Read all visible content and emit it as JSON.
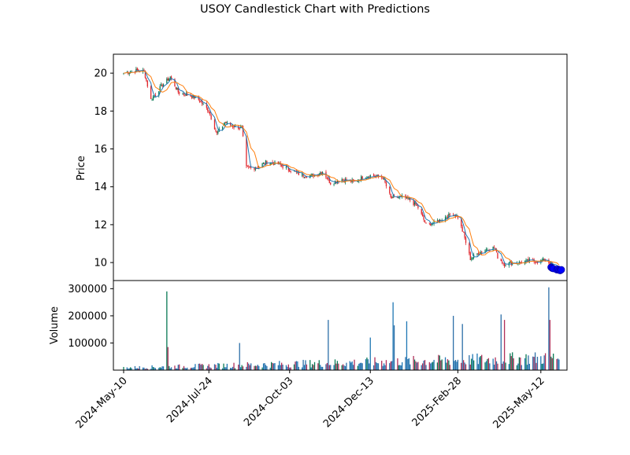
{
  "chart_data": {
    "type": "candlestick",
    "title": "USOY Candlestick Chart with Predictions",
    "price_panel": {
      "ylabel": "Price",
      "yticks": [
        10,
        12,
        14,
        16,
        18,
        20
      ],
      "ylim": [
        9.05,
        21.0
      ],
      "ma_colors": {
        "fast": "#1f77b4",
        "slow": "#ff7f0e"
      },
      "up_color": "#0a7a55",
      "down_color": "#e0262c",
      "approx_close_path": [
        [
          "2024-05-10",
          20.0
        ],
        [
          "2024-05-20",
          20.15
        ],
        [
          "2024-05-28",
          20.1
        ],
        [
          "2024-06-03",
          18.6
        ],
        [
          "2024-06-12",
          19.3
        ],
        [
          "2024-06-20",
          19.8
        ],
        [
          "2024-06-27",
          19.0
        ],
        [
          "2024-07-08",
          18.8
        ],
        [
          "2024-07-15",
          18.6
        ],
        [
          "2024-07-24",
          18.0
        ],
        [
          "2024-07-31",
          16.8
        ],
        [
          "2024-08-07",
          17.4
        ],
        [
          "2024-08-14",
          17.2
        ],
        [
          "2024-08-22",
          17.1
        ],
        [
          "2024-08-26",
          15.0
        ],
        [
          "2024-09-04",
          15.0
        ],
        [
          "2024-09-12",
          15.3
        ],
        [
          "2024-09-23",
          15.2
        ],
        [
          "2024-10-03",
          14.9
        ],
        [
          "2024-10-14",
          14.6
        ],
        [
          "2024-10-24",
          14.6
        ],
        [
          "2024-11-01",
          14.8
        ],
        [
          "2024-11-08",
          14.2
        ],
        [
          "2024-11-18",
          14.4
        ],
        [
          "2024-11-29",
          14.25
        ],
        [
          "2024-12-06",
          14.5
        ],
        [
          "2024-12-13",
          14.6
        ],
        [
          "2024-12-24",
          14.5
        ],
        [
          "2024-12-31",
          13.4
        ],
        [
          "2025-01-10",
          13.45
        ],
        [
          "2025-01-17",
          13.3
        ],
        [
          "2025-01-24",
          12.9
        ],
        [
          "2025-01-31",
          12.0
        ],
        [
          "2025-02-07",
          12.1
        ],
        [
          "2025-02-14",
          12.3
        ],
        [
          "2025-02-24",
          12.6
        ],
        [
          "2025-02-28",
          12.4
        ],
        [
          "2025-03-05",
          11.5
        ],
        [
          "2025-03-11",
          10.2
        ],
        [
          "2025-03-18",
          10.5
        ],
        [
          "2025-03-25",
          10.7
        ],
        [
          "2025-04-01",
          10.8
        ],
        [
          "2025-04-04",
          10.3
        ],
        [
          "2025-04-10",
          9.9
        ],
        [
          "2025-04-17",
          10.0
        ],
        [
          "2025-04-25",
          10.0
        ],
        [
          "2025-05-02",
          10.1
        ],
        [
          "2025-05-09",
          10.05
        ],
        [
          "2025-05-16",
          10.15
        ],
        [
          "2025-05-23",
          9.8
        ],
        [
          "2025-05-28",
          9.6
        ]
      ],
      "predictions": {
        "color": "#0000ff",
        "points": [
          [
            "2025-05-21",
            9.75
          ],
          [
            "2025-05-22",
            9.7
          ],
          [
            "2025-05-23",
            9.68
          ],
          [
            "2025-05-26",
            9.62
          ],
          [
            "2025-05-27",
            9.65
          ],
          [
            "2025-05-28",
            9.6
          ],
          [
            "2025-05-29",
            9.58
          ],
          [
            "2025-05-30",
            9.62
          ]
        ]
      }
    },
    "volume_panel": {
      "ylabel": "Volume",
      "yticks": [
        100000,
        200000,
        300000
      ],
      "ytick_labels": [
        "100000",
        "200000",
        "300000"
      ],
      "ylim": [
        0,
        330000
      ],
      "spikes": [
        [
          "2024-06-17",
          290000
        ],
        [
          "2024-06-18",
          85000
        ],
        [
          "2024-08-20",
          100000
        ],
        [
          "2024-11-06",
          185000
        ],
        [
          "2024-12-13",
          120000
        ],
        [
          "2025-01-02",
          250000
        ],
        [
          "2025-01-03",
          165000
        ],
        [
          "2025-01-14",
          180000
        ],
        [
          "2025-02-24",
          200000
        ],
        [
          "2025-03-04",
          170000
        ],
        [
          "2025-04-07",
          205000
        ],
        [
          "2025-04-10",
          185000
        ],
        [
          "2025-05-19",
          305000
        ],
        [
          "2025-05-20",
          185000
        ]
      ]
    },
    "x_axis": {
      "start": "2024-05-01",
      "end": "2025-06-04",
      "ticks": [
        "2024-05-10",
        "2024-07-24",
        "2024-10-03",
        "2024-12-13",
        "2025-02-28",
        "2025-05-12"
      ],
      "tick_labels": [
        "2024-May-10",
        "2024-Jul-24",
        "2024-Oct-03",
        "2024-Dec-13",
        "2025-Feb-28",
        "2025-May-12"
      ]
    }
  }
}
